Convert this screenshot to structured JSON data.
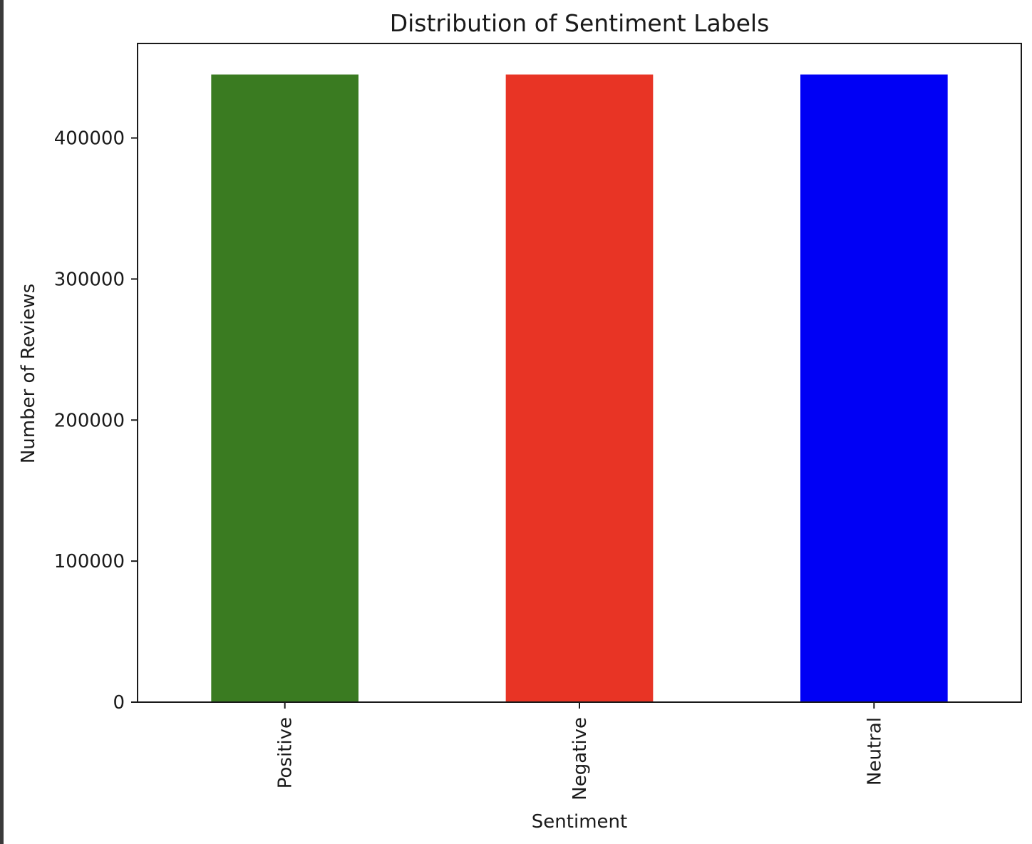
{
  "chart_data": {
    "type": "bar",
    "title": "Distribution of Sentiment Labels",
    "xlabel": "Sentiment",
    "ylabel": "Number of Reviews",
    "categories": [
      "Positive",
      "Negative",
      "Neutral"
    ],
    "values": [
      445000,
      445000,
      445000
    ],
    "colors": [
      "#3a7b21",
      "#e83425",
      "#0000f5"
    ],
    "ylim": [
      0,
      467000
    ],
    "yticks": [
      0,
      100000,
      200000,
      300000,
      400000
    ],
    "ytick_labels": [
      "0",
      "100000",
      "200000",
      "300000",
      "400000"
    ],
    "grid": false,
    "legend": "none"
  }
}
